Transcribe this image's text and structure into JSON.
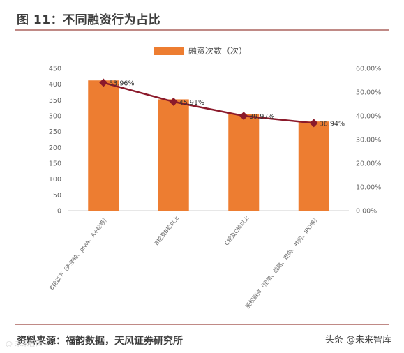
{
  "header": {
    "title": "图 11：不同融资行为占比"
  },
  "footer": {
    "source": "资料来源：福韵数据，天风证券研究所",
    "watermark_right": "头条 @未来智库",
    "watermark_left": "@ 未来智库"
  },
  "colors": {
    "bar": "#ed7d31",
    "line": "#8b1a2b",
    "rule": "#c08a86"
  },
  "chart_data": {
    "type": "bar",
    "categories": [
      "B轮以下（天使轮、preA、A+轮等）",
      "B轮及B轮以上",
      "C轮及C轮以上",
      "股权融资（定增、战略、定向、并购、IPO等）"
    ],
    "series": [
      {
        "name": "融资次数（次）",
        "type": "bar",
        "axis": "left",
        "values": [
          412,
          352,
          305,
          282
        ]
      },
      {
        "type": "line",
        "axis": "right",
        "values": [
          53.96,
          45.91,
          39.97,
          36.94
        ],
        "labels": [
          "53.96%",
          "45.91%",
          "39.97%",
          "36.94%"
        ]
      }
    ],
    "y_left": {
      "min": 0,
      "max": 450,
      "ticks": [
        "0",
        "50",
        "100",
        "150",
        "200",
        "250",
        "300",
        "350",
        "400",
        "450"
      ]
    },
    "y_right": {
      "min": 0,
      "max": 60,
      "ticks": [
        "0.00%",
        "10.00%",
        "20.00%",
        "30.00%",
        "40.00%",
        "50.00%",
        "60.00%"
      ]
    },
    "legend": {
      "position": "top-center",
      "label": "融资次数（次）"
    },
    "grid": false
  }
}
